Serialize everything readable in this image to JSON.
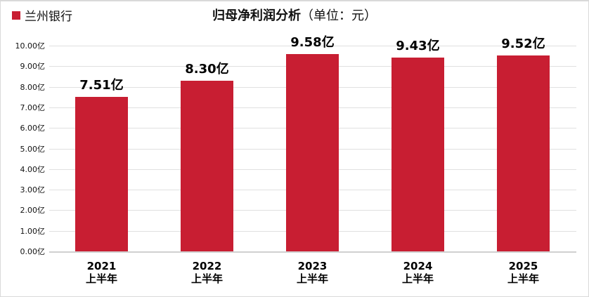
{
  "legend": {
    "label": "兰州银行",
    "color": "#C81E32"
  },
  "title": {
    "main": "归母净利润分析",
    "unit": "（单位：元）"
  },
  "y_axis": {
    "ticks": [
      "0.00亿",
      "1.00亿",
      "2.00亿",
      "3.00亿",
      "4.00亿",
      "5.00亿",
      "6.00亿",
      "7.00亿",
      "8.00亿",
      "9.00亿",
      "10.00亿"
    ]
  },
  "bars": [
    {
      "year": "2021",
      "period": "上半年",
      "value": 7.51,
      "label": "7.51亿"
    },
    {
      "year": "2022",
      "period": "上半年",
      "value": 8.3,
      "label": "8.30亿"
    },
    {
      "year": "2023",
      "period": "上半年",
      "value": 9.58,
      "label": "9.58亿"
    },
    {
      "year": "2024",
      "period": "上半年",
      "value": 9.43,
      "label": "9.43亿"
    },
    {
      "year": "2025",
      "period": "上半年",
      "value": 9.52,
      "label": "9.52亿"
    }
  ],
  "chart_data": {
    "type": "bar",
    "title": "归母净利润分析（单位：元）",
    "categories": [
      "2021上半年",
      "2022上半年",
      "2023上半年",
      "2024上半年",
      "2025上半年"
    ],
    "series": [
      {
        "name": "兰州银行",
        "values": [
          7.51,
          8.3,
          9.58,
          9.43,
          9.52
        ],
        "color": "#C81E32"
      }
    ],
    "data_labels": [
      "7.51亿",
      "8.30亿",
      "9.58亿",
      "9.43亿",
      "9.52亿"
    ],
    "xlabel": "",
    "ylabel": "",
    "yunit": "亿",
    "ylim": [
      0,
      10
    ],
    "yticks": [
      0,
      1,
      2,
      3,
      4,
      5,
      6,
      7,
      8,
      9,
      10
    ],
    "grid": true,
    "legend_position": "top-left"
  }
}
